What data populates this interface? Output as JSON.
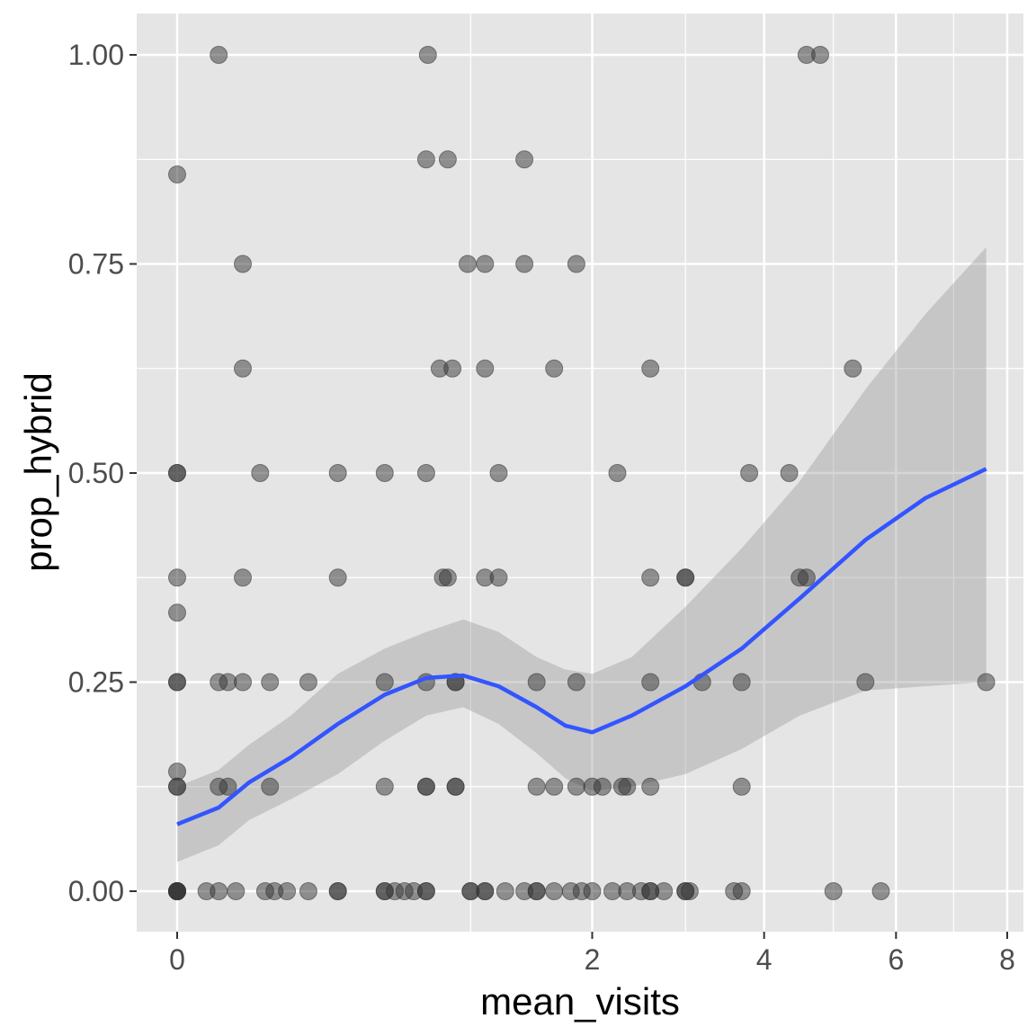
{
  "chart_data": {
    "type": "scatter",
    "xlabel": "mean_visits",
    "ylabel": "prop_hybrid",
    "x_scale": "sqrt",
    "xlim": [
      0,
      8
    ],
    "ylim": [
      -0.05,
      1.05
    ],
    "x_ticks": [
      0,
      2,
      4,
      6,
      8
    ],
    "x_tick_labels": [
      "0",
      "2",
      "4",
      "6",
      "8"
    ],
    "y_ticks": [
      0,
      0.25,
      0.5,
      0.75,
      1.0
    ],
    "y_tick_labels": [
      "0.00",
      "0.25",
      "0.50",
      "0.75",
      "1.00"
    ],
    "grid": true,
    "panel_color": "#e5e5e5",
    "grid_color": "#ffffff",
    "point_color": "#333333",
    "point_opacity": 0.5,
    "smooth_color": "#3355ff",
    "ribbon_color": "#999999",
    "points": [
      [
        0.02,
        1.0
      ],
      [
        0.73,
        1.0
      ],
      [
        4.6,
        1.0
      ],
      [
        4.8,
        1.0
      ],
      [
        0.0,
        0.857
      ],
      [
        0.72,
        0.875
      ],
      [
        0.85,
        0.875
      ],
      [
        1.4,
        0.875
      ],
      [
        0.05,
        0.75
      ],
      [
        0.98,
        0.75
      ],
      [
        1.1,
        0.75
      ],
      [
        1.4,
        0.75
      ],
      [
        1.85,
        0.75
      ],
      [
        0.05,
        0.625
      ],
      [
        0.8,
        0.625
      ],
      [
        0.88,
        0.625
      ],
      [
        1.1,
        0.625
      ],
      [
        1.65,
        0.625
      ],
      [
        2.6,
        0.625
      ],
      [
        5.3,
        0.625
      ],
      [
        0.0,
        0.5
      ],
      [
        0.0,
        0.5
      ],
      [
        0.08,
        0.5
      ],
      [
        0.3,
        0.5
      ],
      [
        0.5,
        0.5
      ],
      [
        0.72,
        0.5
      ],
      [
        1.2,
        0.5
      ],
      [
        2.25,
        0.5
      ],
      [
        4.35,
        0.5
      ],
      [
        3.8,
        0.5
      ],
      [
        0.0,
        0.375
      ],
      [
        0.05,
        0.375
      ],
      [
        0.3,
        0.375
      ],
      [
        0.82,
        0.375
      ],
      [
        0.85,
        0.375
      ],
      [
        1.1,
        0.375
      ],
      [
        1.2,
        0.375
      ],
      [
        2.6,
        0.375
      ],
      [
        3.0,
        0.375
      ],
      [
        3.0,
        0.375
      ],
      [
        4.5,
        0.375
      ],
      [
        4.6,
        0.375
      ],
      [
        0.0,
        0.333
      ],
      [
        0.0,
        0.25
      ],
      [
        0.0,
        0.25
      ],
      [
        0.02,
        0.25
      ],
      [
        0.03,
        0.25
      ],
      [
        0.05,
        0.25
      ],
      [
        0.1,
        0.25
      ],
      [
        0.2,
        0.25
      ],
      [
        0.5,
        0.25
      ],
      [
        0.72,
        0.25
      ],
      [
        0.9,
        0.25
      ],
      [
        0.9,
        0.25
      ],
      [
        1.5,
        0.25
      ],
      [
        1.85,
        0.25
      ],
      [
        2.6,
        0.25
      ],
      [
        3.2,
        0.25
      ],
      [
        3.7,
        0.25
      ],
      [
        5.5,
        0.25
      ],
      [
        7.6,
        0.25
      ],
      [
        0.0,
        0.143
      ],
      [
        0.0,
        0.125
      ],
      [
        0.0,
        0.125
      ],
      [
        0.02,
        0.125
      ],
      [
        0.03,
        0.125
      ],
      [
        0.1,
        0.125
      ],
      [
        0.5,
        0.125
      ],
      [
        0.72,
        0.125
      ],
      [
        0.72,
        0.125
      ],
      [
        0.9,
        0.125
      ],
      [
        0.9,
        0.125
      ],
      [
        1.5,
        0.125
      ],
      [
        1.65,
        0.125
      ],
      [
        1.85,
        0.125
      ],
      [
        2.0,
        0.125
      ],
      [
        2.1,
        0.125
      ],
      [
        2.3,
        0.125
      ],
      [
        2.35,
        0.125
      ],
      [
        2.6,
        0.125
      ],
      [
        3.7,
        0.125
      ],
      [
        0.0,
        0.0
      ],
      [
        0.0,
        0.0
      ],
      [
        0.0,
        0.0
      ],
      [
        0.0,
        0.0
      ],
      [
        0.0,
        0.0
      ],
      [
        0.01,
        0.0
      ],
      [
        0.02,
        0.0
      ],
      [
        0.04,
        0.0
      ],
      [
        0.09,
        0.0
      ],
      [
        0.11,
        0.0
      ],
      [
        0.14,
        0.0
      ],
      [
        0.2,
        0.0
      ],
      [
        0.3,
        0.0
      ],
      [
        0.3,
        0.0
      ],
      [
        0.5,
        0.0
      ],
      [
        0.5,
        0.0
      ],
      [
        0.55,
        0.0
      ],
      [
        0.6,
        0.0
      ],
      [
        0.65,
        0.0
      ],
      [
        0.72,
        0.0
      ],
      [
        0.72,
        0.0
      ],
      [
        1.0,
        0.0
      ],
      [
        1.0,
        0.0
      ],
      [
        1.1,
        0.0
      ],
      [
        1.1,
        0.0
      ],
      [
        1.25,
        0.0
      ],
      [
        1.4,
        0.0
      ],
      [
        1.5,
        0.0
      ],
      [
        1.5,
        0.0
      ],
      [
        1.65,
        0.0
      ],
      [
        1.8,
        0.0
      ],
      [
        1.9,
        0.0
      ],
      [
        2.0,
        0.0
      ],
      [
        2.2,
        0.0
      ],
      [
        2.35,
        0.0
      ],
      [
        2.5,
        0.0
      ],
      [
        2.6,
        0.0
      ],
      [
        2.6,
        0.0
      ],
      [
        2.75,
        0.0
      ],
      [
        3.0,
        0.0
      ],
      [
        3.0,
        0.0
      ],
      [
        3.05,
        0.0
      ],
      [
        3.6,
        0.0
      ],
      [
        3.7,
        0.0
      ],
      [
        5.0,
        0.0
      ],
      [
        5.75,
        0.0
      ]
    ],
    "smooth": [
      [
        0.0,
        0.08,
        0.035,
        0.125
      ],
      [
        0.02,
        0.1,
        0.055,
        0.145
      ],
      [
        0.06,
        0.13,
        0.085,
        0.175
      ],
      [
        0.15,
        0.16,
        0.11,
        0.21
      ],
      [
        0.3,
        0.2,
        0.14,
        0.26
      ],
      [
        0.5,
        0.235,
        0.18,
        0.29
      ],
      [
        0.72,
        0.255,
        0.21,
        0.31
      ],
      [
        0.95,
        0.258,
        0.22,
        0.325
      ],
      [
        1.2,
        0.245,
        0.2,
        0.31
      ],
      [
        1.5,
        0.22,
        0.165,
        0.28
      ],
      [
        1.75,
        0.198,
        0.135,
        0.265
      ],
      [
        2.0,
        0.19,
        0.12,
        0.26
      ],
      [
        2.4,
        0.21,
        0.125,
        0.28
      ],
      [
        3.0,
        0.245,
        0.14,
        0.34
      ],
      [
        3.7,
        0.29,
        0.17,
        0.41
      ],
      [
        4.5,
        0.35,
        0.21,
        0.49
      ],
      [
        5.5,
        0.42,
        0.24,
        0.6
      ],
      [
        6.5,
        0.47,
        0.245,
        0.69
      ],
      [
        7.6,
        0.505,
        0.25,
        0.77
      ]
    ]
  }
}
